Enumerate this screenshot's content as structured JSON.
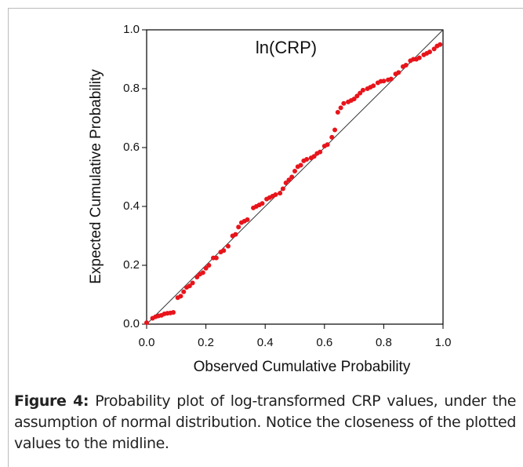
{
  "chart_data": {
    "type": "scatter",
    "title": "ln(CRP)",
    "x_label": "Observed Cumulative Probability",
    "y_label": "Expected Cumulative Probability",
    "xlim": [
      0,
      1
    ],
    "ylim": [
      0,
      1
    ],
    "xticks": [
      {
        "value": 0,
        "label": "0.0"
      },
      0.2,
      0.4,
      0.6,
      0.8,
      {
        "value": 1,
        "label": "1.0"
      }
    ],
    "yticks": [
      {
        "value": 0,
        "label": "0.0"
      },
      0.2,
      0.4,
      0.6,
      0.8,
      {
        "value": 1,
        "label": "1.0"
      }
    ],
    "series": [
      {
        "color": "#e8141b",
        "x": [
          0.0,
          0.02,
          0.03,
          0.04,
          0.05,
          0.06,
          0.07,
          0.08,
          0.09,
          0.105,
          0.115,
          0.125,
          0.135,
          0.145,
          0.155,
          0.17,
          0.18,
          0.19,
          0.2,
          0.21,
          0.225,
          0.235,
          0.25,
          0.26,
          0.275,
          0.29,
          0.3,
          0.31,
          0.32,
          0.33,
          0.34,
          0.36,
          0.37,
          0.38,
          0.39,
          0.405,
          0.415,
          0.425,
          0.435,
          0.45,
          0.46,
          0.47,
          0.48,
          0.49,
          0.5,
          0.51,
          0.52,
          0.53,
          0.54,
          0.555,
          0.565,
          0.575,
          0.585,
          0.6,
          0.61,
          0.625,
          0.635,
          0.645,
          0.655,
          0.665,
          0.68,
          0.69,
          0.7,
          0.71,
          0.72,
          0.73,
          0.745,
          0.755,
          0.765,
          0.78,
          0.79,
          0.8,
          0.815,
          0.825,
          0.84,
          0.85,
          0.865,
          0.875,
          0.89,
          0.9,
          0.91,
          0.92,
          0.935,
          0.945,
          0.955,
          0.97,
          0.98,
          0.99
        ],
        "values": [
          0.005,
          0.02,
          0.025,
          0.028,
          0.03,
          0.035,
          0.037,
          0.038,
          0.04,
          0.09,
          0.095,
          0.11,
          0.125,
          0.13,
          0.14,
          0.16,
          0.17,
          0.175,
          0.19,
          0.2,
          0.225,
          0.225,
          0.245,
          0.25,
          0.265,
          0.3,
          0.305,
          0.33,
          0.345,
          0.35,
          0.355,
          0.395,
          0.4,
          0.405,
          0.41,
          0.425,
          0.43,
          0.435,
          0.44,
          0.445,
          0.46,
          0.48,
          0.49,
          0.5,
          0.52,
          0.535,
          0.54,
          0.555,
          0.56,
          0.565,
          0.57,
          0.58,
          0.585,
          0.605,
          0.61,
          0.635,
          0.66,
          0.72,
          0.735,
          0.75,
          0.755,
          0.76,
          0.765,
          0.775,
          0.785,
          0.795,
          0.8,
          0.805,
          0.81,
          0.82,
          0.825,
          0.826,
          0.83,
          0.833,
          0.85,
          0.855,
          0.875,
          0.88,
          0.895,
          0.9,
          0.9,
          0.905,
          0.915,
          0.92,
          0.925,
          0.935,
          0.945,
          0.95
        ]
      }
    ]
  },
  "caption": {
    "label": "Figure 4:",
    "text": "Probability plot of log-transformed CRP values, under the assumption of normal distribution. Notice the closeness of the plotted values to the midline."
  }
}
